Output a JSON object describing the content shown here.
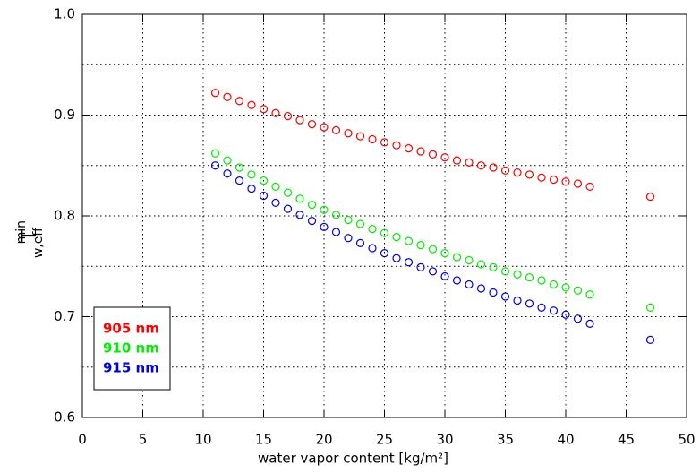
{
  "chart_data": {
    "type": "scatter",
    "ylabel": {
      "main": "T",
      "sup": "min",
      "sub": "w,eff"
    },
    "xlabel": "water vapor content [kg/m²]",
    "x": [
      11,
      12,
      13,
      14,
      15,
      16,
      17,
      18,
      19,
      20,
      21,
      22,
      23,
      24,
      25,
      26,
      27,
      28,
      29,
      30,
      31,
      32,
      33,
      34,
      35,
      36,
      37,
      38,
      39,
      40,
      41,
      42,
      47
    ],
    "series": [
      {
        "name": "905 nm",
        "color": "#ff0000",
        "values": [
          0.922,
          0.918,
          0.914,
          0.91,
          0.906,
          0.902,
          0.899,
          0.895,
          0.891,
          0.888,
          0.885,
          0.882,
          0.879,
          0.876,
          0.873,
          0.87,
          0.867,
          0.864,
          0.861,
          0.858,
          0.855,
          0.853,
          0.85,
          0.848,
          0.845,
          0.843,
          0.841,
          0.838,
          0.836,
          0.834,
          0.832,
          0.829,
          0.819
        ]
      },
      {
        "name": "910 nm",
        "color": "#00ee00",
        "values": [
          0.862,
          0.855,
          0.848,
          0.841,
          0.835,
          0.829,
          0.823,
          0.817,
          0.811,
          0.806,
          0.801,
          0.796,
          0.792,
          0.787,
          0.783,
          0.779,
          0.775,
          0.771,
          0.767,
          0.763,
          0.759,
          0.756,
          0.752,
          0.749,
          0.745,
          0.742,
          0.739,
          0.736,
          0.732,
          0.729,
          0.726,
          0.722,
          0.709
        ]
      },
      {
        "name": "915 nm",
        "color": "#0000ee",
        "values": [
          0.85,
          0.842,
          0.835,
          0.827,
          0.82,
          0.813,
          0.807,
          0.801,
          0.795,
          0.789,
          0.784,
          0.778,
          0.773,
          0.768,
          0.763,
          0.758,
          0.754,
          0.749,
          0.745,
          0.74,
          0.736,
          0.732,
          0.728,
          0.724,
          0.72,
          0.716,
          0.713,
          0.709,
          0.706,
          0.702,
          0.698,
          0.693,
          0.677
        ]
      }
    ],
    "xlim": [
      0,
      50
    ],
    "ylim": [
      0.6,
      1.0
    ],
    "xticks": [
      0,
      5,
      10,
      15,
      20,
      25,
      30,
      35,
      40,
      45,
      50
    ],
    "yticks": [
      0.6,
      0.7,
      0.8,
      0.9,
      {
        "value": 1,
        "label": "1.0"
      }
    ],
    "ygrid": [
      0.65,
      0.7,
      0.75,
      0.8,
      0.85,
      0.9,
      0.95
    ],
    "xgrid": [
      5,
      10,
      15,
      20,
      25,
      30,
      35,
      40,
      45
    ],
    "grid": true
  }
}
